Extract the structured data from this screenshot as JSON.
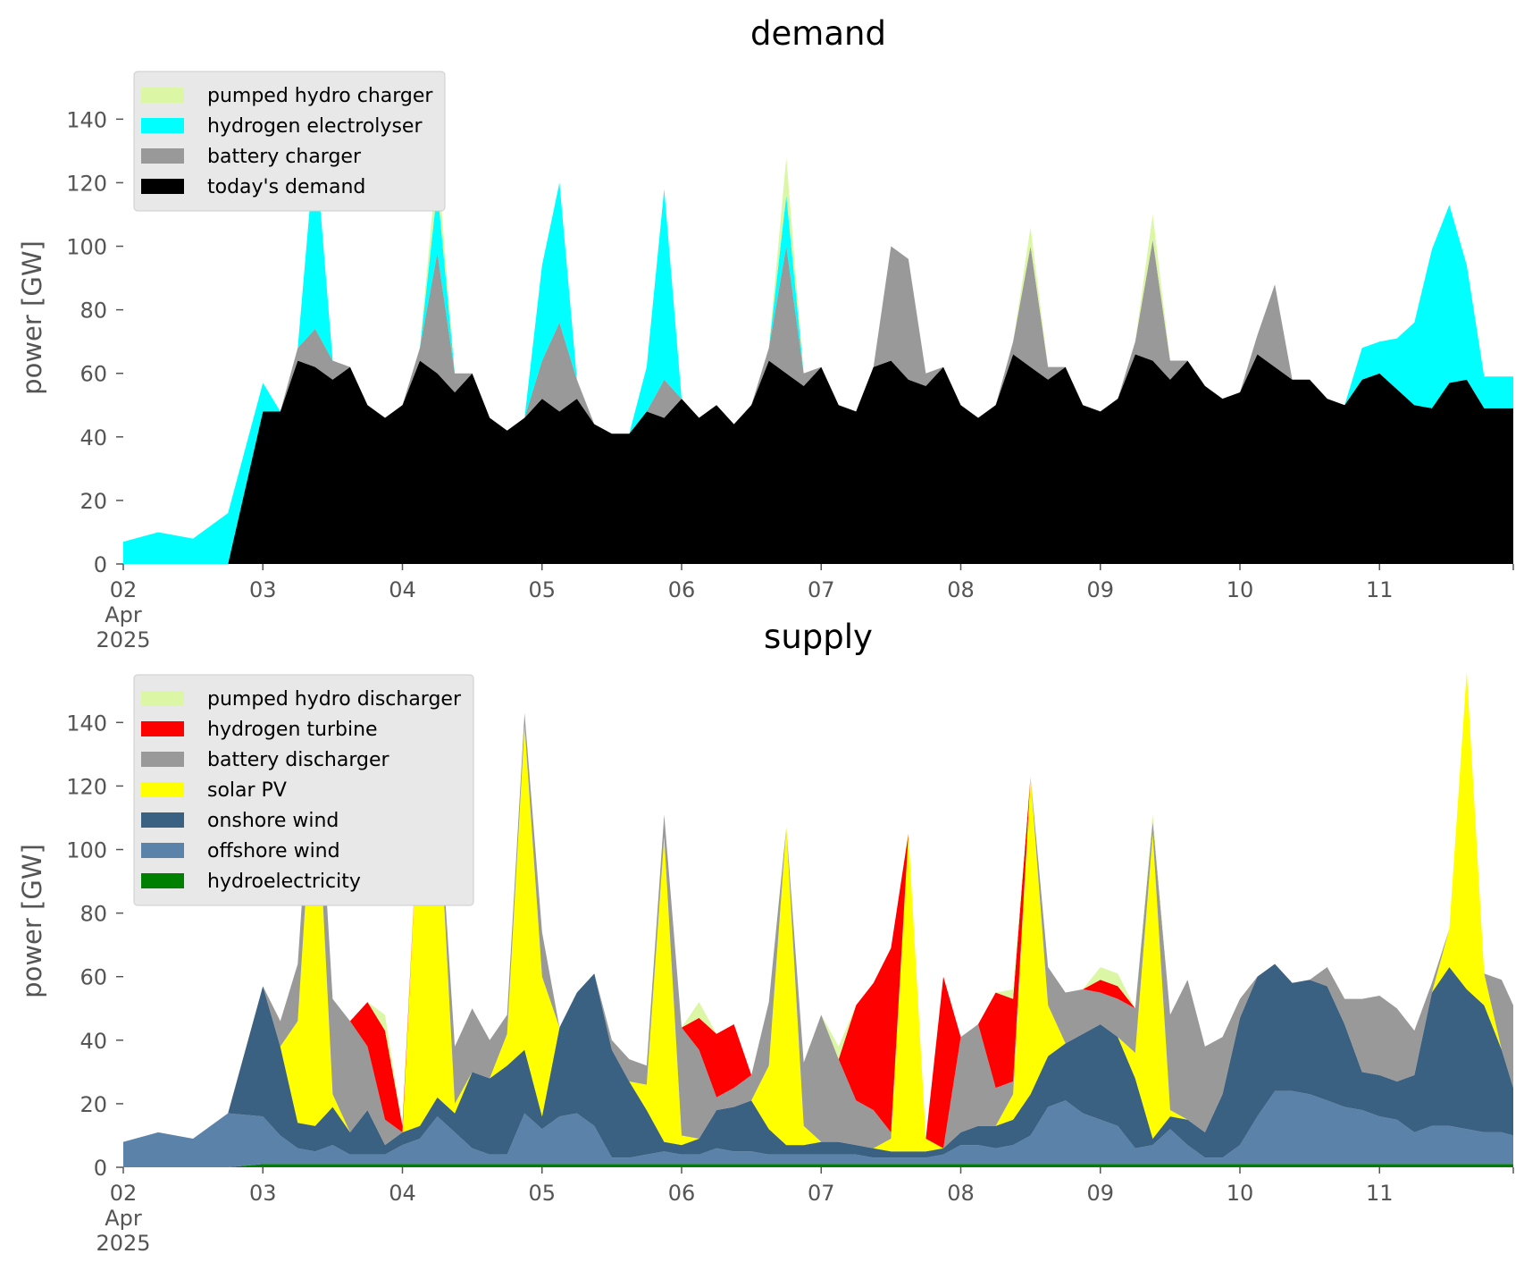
{
  "chart_data": [
    {
      "type": "area",
      "title": "demand",
      "xlabel": "",
      "ylabel": "power [GW]",
      "ylim": [
        0,
        155
      ],
      "yticks": [
        0,
        20,
        40,
        60,
        80,
        100,
        120,
        140
      ],
      "xlim": [
        0,
        239
      ],
      "xticks": [
        {
          "day": 0,
          "label": "02",
          "sub1": "Apr",
          "sub2": "2025"
        },
        {
          "day": 1,
          "label": "03"
        },
        {
          "day": 2,
          "label": "04"
        },
        {
          "day": 3,
          "label": "05"
        },
        {
          "day": 4,
          "label": "06"
        },
        {
          "day": 5,
          "label": "07"
        },
        {
          "day": 6,
          "label": "08"
        },
        {
          "day": 7,
          "label": "09"
        },
        {
          "day": 8,
          "label": "10"
        },
        {
          "day": 9,
          "label": "11"
        }
      ],
      "legend_position": "top-left",
      "legend": [
        "pumped hydro charger",
        "hydrogen electrolyser",
        "battery charger",
        "today's demand"
      ],
      "x_hours": [
        0,
        6,
        12,
        18,
        24,
        27,
        30,
        33,
        36,
        39,
        42,
        45,
        48,
        51,
        54,
        57,
        60,
        63,
        66,
        69,
        72,
        75,
        78,
        81,
        84,
        87,
        90,
        93,
        96,
        99,
        102,
        105,
        108,
        111,
        114,
        117,
        120,
        123,
        126,
        129,
        132,
        135,
        138,
        141,
        144,
        147,
        150,
        153,
        156,
        159,
        162,
        165,
        168,
        171,
        174,
        177,
        180,
        183,
        186,
        189,
        192,
        195,
        198,
        201,
        204,
        207,
        210,
        213,
        216,
        219,
        222,
        225,
        228,
        231,
        234,
        237,
        239
      ],
      "series": [
        {
          "name": "today's demand",
          "color": "#000000",
          "values": [
            0,
            0,
            0,
            0,
            48,
            48,
            64,
            62,
            58,
            62,
            50,
            46,
            50,
            64,
            60,
            54,
            60,
            46,
            42,
            46,
            52,
            48,
            52,
            44,
            41,
            41,
            48,
            46,
            52,
            46,
            50,
            44,
            50,
            64,
            60,
            56,
            62,
            50,
            48,
            62,
            64,
            58,
            56,
            62,
            50,
            46,
            50,
            66,
            62,
            58,
            62,
            50,
            48,
            52,
            66,
            64,
            58,
            64,
            56,
            52,
            54,
            66,
            62,
            58,
            58,
            52,
            50,
            58,
            60,
            55,
            50,
            49,
            57,
            58,
            49,
            49,
            49
          ]
        },
        {
          "name": "battery charger",
          "color": "#999999",
          "values": [
            0,
            0,
            0,
            0,
            0,
            0,
            4,
            12,
            6,
            0,
            0,
            0,
            0,
            4,
            38,
            6,
            0,
            0,
            0,
            0,
            12,
            28,
            6,
            0,
            0,
            0,
            0,
            12,
            0,
            0,
            0,
            0,
            0,
            4,
            40,
            4,
            0,
            0,
            0,
            0,
            36,
            38,
            4,
            0,
            0,
            0,
            0,
            4,
            38,
            4,
            0,
            0,
            0,
            0,
            4,
            38,
            6,
            0,
            0,
            0,
            0,
            6,
            26,
            0,
            0,
            0,
            0,
            0,
            0,
            0,
            0,
            0,
            0,
            0,
            0,
            0,
            0
          ]
        },
        {
          "name": "hydrogen electrolyser",
          "color": "#00ffff",
          "values": [
            7,
            10,
            8,
            16,
            9,
            0,
            0,
            58,
            0,
            0,
            0,
            0,
            0,
            0,
            20,
            0,
            0,
            0,
            0,
            0,
            30,
            44,
            0,
            0,
            0,
            0,
            14,
            60,
            0,
            0,
            0,
            0,
            0,
            0,
            16,
            0,
            0,
            0,
            0,
            0,
            0,
            0,
            0,
            0,
            0,
            0,
            0,
            0,
            0,
            0,
            0,
            0,
            0,
            0,
            0,
            0,
            0,
            0,
            0,
            0,
            0,
            0,
            0,
            0,
            0,
            0,
            0,
            10,
            10,
            16,
            26,
            50,
            56,
            36,
            10,
            10,
            10
          ]
        },
        {
          "name": "pumped hydro charger",
          "color": "#dbf7a5",
          "values": [
            0,
            0,
            0,
            0,
            0,
            0,
            0,
            0,
            0,
            0,
            0,
            0,
            0,
            0,
            10,
            0,
            0,
            0,
            0,
            0,
            0,
            0,
            0,
            0,
            0,
            0,
            0,
            0,
            0,
            0,
            0,
            0,
            0,
            0,
            12,
            0,
            0,
            0,
            0,
            0,
            0,
            0,
            0,
            0,
            0,
            0,
            0,
            0,
            6,
            0,
            0,
            0,
            0,
            0,
            0,
            8,
            0,
            0,
            0,
            0,
            0,
            0,
            0,
            0,
            0,
            0,
            0,
            0,
            0,
            0,
            0,
            0,
            0,
            0,
            0,
            0,
            0
          ]
        }
      ]
    },
    {
      "type": "area",
      "title": "supply",
      "xlabel": "",
      "ylabel": "power [GW]",
      "ylim": [
        0,
        155
      ],
      "yticks": [
        0,
        20,
        40,
        60,
        80,
        100,
        120,
        140
      ],
      "xlim": [
        0,
        239
      ],
      "xticks": [
        {
          "day": 0,
          "label": "02",
          "sub1": "Apr",
          "sub2": "2025"
        },
        {
          "day": 1,
          "label": "03"
        },
        {
          "day": 2,
          "label": "04"
        },
        {
          "day": 3,
          "label": "05"
        },
        {
          "day": 4,
          "label": "06"
        },
        {
          "day": 5,
          "label": "07"
        },
        {
          "day": 6,
          "label": "08"
        },
        {
          "day": 7,
          "label": "09"
        },
        {
          "day": 8,
          "label": "10"
        },
        {
          "day": 9,
          "label": "11"
        }
      ],
      "legend_position": "top-left",
      "legend": [
        "pumped hydro discharger",
        "hydrogen turbine",
        "battery discharger",
        "solar PV",
        "onshore wind",
        "offshore wind",
        "hydroelectricity"
      ],
      "x_hours": [
        0,
        6,
        12,
        18,
        24,
        27,
        30,
        33,
        36,
        39,
        42,
        45,
        48,
        51,
        54,
        57,
        60,
        63,
        66,
        69,
        72,
        75,
        78,
        81,
        84,
        87,
        90,
        93,
        96,
        99,
        102,
        105,
        108,
        111,
        114,
        117,
        120,
        123,
        126,
        129,
        132,
        135,
        138,
        141,
        144,
        147,
        150,
        153,
        156,
        159,
        162,
        165,
        168,
        171,
        174,
        177,
        180,
        183,
        186,
        189,
        192,
        195,
        198,
        201,
        204,
        207,
        210,
        213,
        216,
        219,
        222,
        225,
        228,
        231,
        234,
        237,
        239
      ],
      "series": [
        {
          "name": "hydroelectricity",
          "color": "#008000",
          "values": [
            0,
            0,
            0,
            0,
            1,
            1,
            1,
            1,
            1,
            1,
            1,
            1,
            1,
            1,
            1,
            1,
            1,
            1,
            1,
            1,
            1,
            1,
            1,
            1,
            1,
            1,
            1,
            1,
            1,
            1,
            1,
            1,
            1,
            1,
            1,
            1,
            1,
            1,
            1,
            1,
            1,
            1,
            1,
            1,
            1,
            1,
            1,
            1,
            1,
            1,
            1,
            1,
            1,
            1,
            1,
            1,
            1,
            1,
            1,
            1,
            1,
            1,
            1,
            1,
            1,
            1,
            1,
            1,
            1,
            1,
            1,
            1,
            1,
            1,
            1,
            1,
            1
          ]
        },
        {
          "name": "offshore wind",
          "color": "#5b82a8",
          "values": [
            8,
            11,
            9,
            17,
            15,
            9,
            5,
            4,
            6,
            3,
            3,
            3,
            6,
            8,
            15,
            10,
            5,
            3,
            3,
            16,
            11,
            15,
            16,
            12,
            2,
            2,
            3,
            4,
            3,
            3,
            5,
            4,
            4,
            3,
            3,
            3,
            3,
            3,
            3,
            2,
            2,
            2,
            2,
            3,
            6,
            6,
            5,
            6,
            9,
            18,
            20,
            16,
            14,
            12,
            5,
            6,
            11,
            6,
            2,
            2,
            6,
            15,
            23,
            23,
            22,
            20,
            18,
            17,
            15,
            14,
            10,
            12,
            12,
            11,
            10,
            10,
            9
          ]
        },
        {
          "name": "onshore wind",
          "color": "#3b6182",
          "values": [
            0,
            0,
            0,
            0,
            41,
            28,
            8,
            8,
            12,
            7,
            14,
            3,
            4,
            4,
            6,
            6,
            24,
            24,
            28,
            20,
            4,
            28,
            38,
            48,
            34,
            24,
            14,
            3,
            3,
            5,
            12,
            14,
            16,
            8,
            3,
            3,
            4,
            4,
            3,
            3,
            2,
            2,
            2,
            2,
            4,
            6,
            7,
            8,
            13,
            16,
            18,
            25,
            30,
            28,
            22,
            2,
            4,
            8,
            8,
            20,
            40,
            44,
            40,
            34,
            36,
            36,
            26,
            12,
            13,
            12,
            18,
            42,
            50,
            44,
            40,
            26,
            15
          ]
        },
        {
          "name": "solar PV",
          "color": "#ffff00",
          "values": [
            0,
            0,
            0,
            0,
            0,
            0,
            32,
            118,
            4,
            0,
            0,
            0,
            0,
            108,
            101,
            3,
            0,
            0,
            10,
            102,
            44,
            0,
            0,
            0,
            0,
            0,
            8,
            96,
            3,
            0,
            0,
            0,
            0,
            20,
            100,
            6,
            0,
            0,
            0,
            0,
            4,
            100,
            4,
            0,
            0,
            0,
            0,
            8,
            100,
            16,
            0,
            0,
            0,
            0,
            8,
            96,
            2,
            0,
            0,
            0,
            0,
            0,
            0,
            0,
            0,
            0,
            0,
            0,
            0,
            0,
            0,
            0,
            12,
            100,
            10,
            0,
            0
          ]
        },
        {
          "name": "battery discharger",
          "color": "#999999",
          "values": [
            0,
            0,
            0,
            0,
            0,
            8,
            18,
            14,
            30,
            35,
            20,
            8,
            0,
            0,
            0,
            18,
            20,
            12,
            6,
            4,
            14,
            0,
            0,
            0,
            3,
            7,
            6,
            7,
            34,
            28,
            4,
            6,
            8,
            20,
            0,
            20,
            40,
            26,
            14,
            12,
            2,
            0,
            0,
            0,
            30,
            32,
            12,
            4,
            0,
            12,
            16,
            14,
            10,
            12,
            14,
            4,
            30,
            44,
            27,
            18,
            6,
            0,
            0,
            0,
            0,
            6,
            8,
            23,
            25,
            23,
            14,
            3,
            0,
            0,
            0,
            22,
            26
          ]
        },
        {
          "name": "hydrogen turbine",
          "color": "#ff0000",
          "values": [
            0,
            0,
            0,
            0,
            0,
            0,
            0,
            0,
            0,
            0,
            14,
            28,
            2,
            0,
            0,
            0,
            0,
            0,
            0,
            0,
            0,
            0,
            0,
            0,
            0,
            0,
            0,
            0,
            0,
            10,
            20,
            20,
            0,
            0,
            0,
            0,
            0,
            0,
            30,
            40,
            58,
            0,
            0,
            54,
            0,
            0,
            30,
            26,
            0,
            0,
            0,
            0,
            4,
            4,
            0,
            0,
            0,
            0,
            0,
            0,
            0,
            0,
            0,
            0,
            0,
            0,
            0,
            0,
            0,
            0,
            0,
            0,
            0,
            0,
            0,
            0,
            0
          ]
        },
        {
          "name": "pumped hydro discharger",
          "color": "#dbf7a5",
          "values": [
            0,
            0,
            0,
            0,
            0,
            0,
            0,
            0,
            0,
            0,
            0,
            5,
            0,
            0,
            0,
            0,
            0,
            0,
            0,
            0,
            0,
            0,
            0,
            0,
            0,
            0,
            0,
            0,
            0,
            5,
            0,
            0,
            0,
            0,
            0,
            0,
            0,
            4,
            0,
            0,
            0,
            0,
            0,
            0,
            0,
            0,
            0,
            3,
            0,
            0,
            0,
            0,
            4,
            4,
            0,
            2,
            0,
            0,
            0,
            0,
            0,
            0,
            0,
            0,
            0,
            0,
            0,
            0,
            0,
            0,
            0,
            0,
            0,
            0,
            0,
            0,
            0
          ]
        }
      ]
    }
  ]
}
